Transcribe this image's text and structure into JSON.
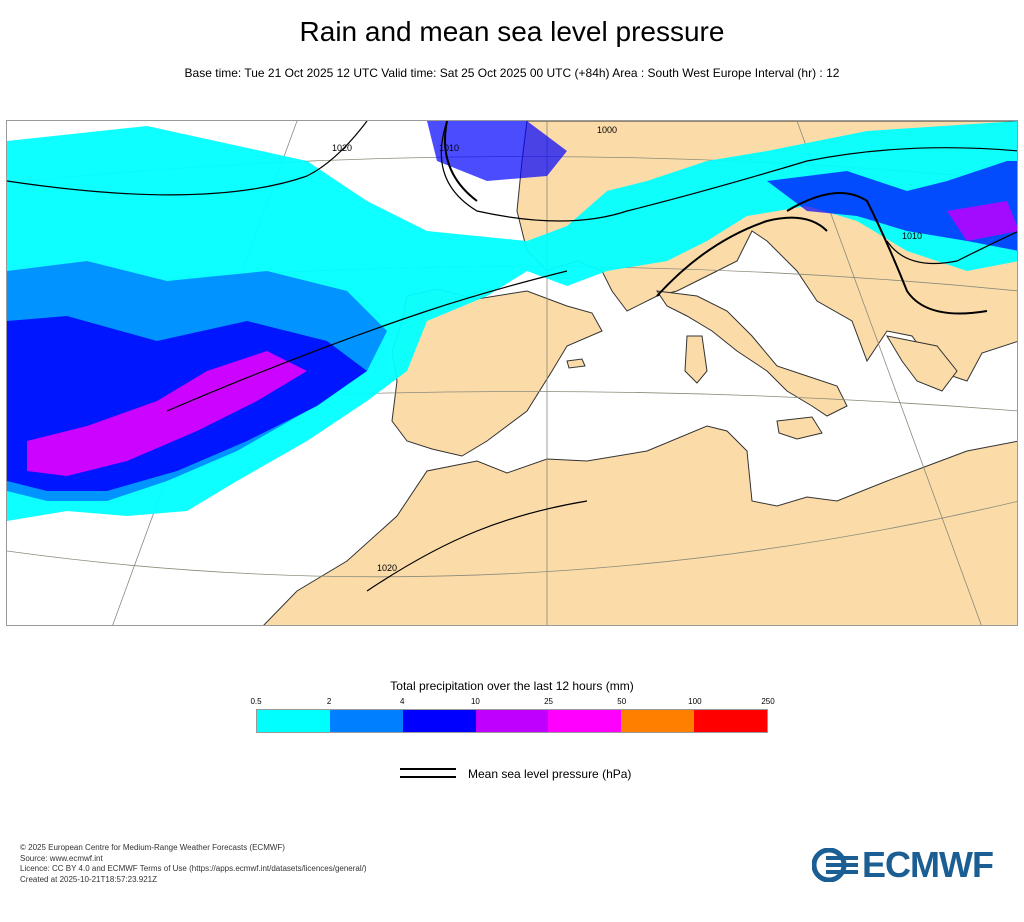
{
  "title": "Rain and mean sea level pressure",
  "subtitle": "Base time: Tue 21 Oct 2025 12 UTC Valid time: Sat 25 Oct 2025 00 UTC (+84h) Area : South West Europe Interval (hr) : 12",
  "map": {
    "isobar_labels": [
      "1000",
      "1010",
      "1020",
      "1010",
      "1020"
    ],
    "colors": {
      "land": "#fbdca9",
      "sea": "#ffffff",
      "coast": "#333333",
      "isobar": "#000000",
      "grid": "#8a8a7a"
    }
  },
  "legend": {
    "title": "Total precipitation over the last 12 hours (mm)",
    "ticks": [
      "0.5",
      "2",
      "4",
      "10",
      "25",
      "50",
      "100",
      "250"
    ],
    "colors": [
      "#00ffff",
      "#0080ff",
      "#0000ff",
      "#c000ff",
      "#ff00ff",
      "#ff8000",
      "#ff0000"
    ]
  },
  "isobar_legend": {
    "label": "Mean sea level pressure (hPa)"
  },
  "footer": {
    "line1": "© 2025 European Centre for Medium-Range Weather Forecasts (ECMWF)",
    "line2": "Source: www.ecmwf.int",
    "line3": "Licence: CC BY 4.0 and ECMWF Terms of Use (https://apps.ecmwf.int/datasets/licences/general/)",
    "line4": "Created at 2025-10-21T18:57:23.921Z"
  },
  "logo": {
    "text": "ECMWF",
    "color": "#1b5e93"
  }
}
